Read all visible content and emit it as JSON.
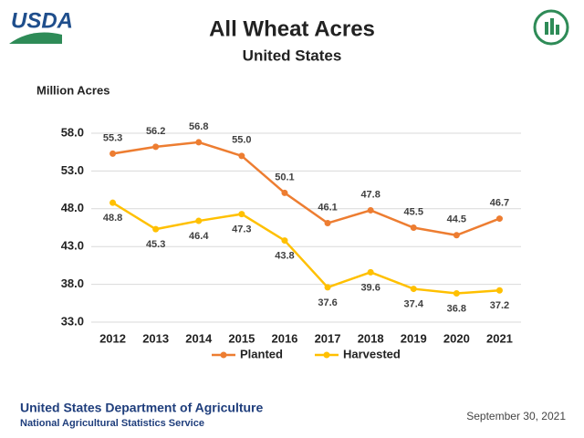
{
  "logo_text": "USDA",
  "chart_data": {
    "type": "line",
    "title": "All Wheat Acres",
    "subtitle": "United States",
    "y_label": "Million Acres",
    "categories": [
      "2012",
      "2013",
      "2014",
      "2015",
      "2016",
      "2017",
      "2018",
      "2019",
      "2020",
      "2021"
    ],
    "series": [
      {
        "name": "Planted",
        "color": "#ed7d31",
        "label_position": "above",
        "values": [
          55.3,
          56.2,
          56.8,
          55.0,
          50.1,
          46.1,
          47.8,
          45.5,
          44.5,
          46.7
        ],
        "value_labels": [
          "55.3",
          "56.2",
          "56.8",
          "55.0",
          "50.1",
          "46.1",
          "47.8",
          "45.5",
          "44.5",
          "46.7"
        ]
      },
      {
        "name": "Harvested",
        "color": "#ffc000",
        "label_position": "below",
        "values": [
          48.8,
          45.3,
          46.4,
          47.3,
          43.8,
          37.6,
          39.6,
          37.4,
          36.8,
          37.2
        ],
        "value_labels": [
          "48.8",
          "45.3",
          "46.4",
          "47.3",
          "43.8",
          "37.6",
          "39.6",
          "37.4",
          "36.8",
          "37.2"
        ]
      }
    ],
    "ylim": [
      33,
      58
    ],
    "yticks": [
      {
        "value": 33,
        "label": "33.0"
      },
      {
        "value": 38,
        "label": "38.0"
      },
      {
        "value": 43,
        "label": "43.0"
      },
      {
        "value": 48,
        "label": "48.0"
      },
      {
        "value": 53,
        "label": "53.0"
      },
      {
        "value": 58,
        "label": "58.0"
      }
    ],
    "grid": true,
    "legend": "bottom"
  },
  "footer": {
    "org": "United States Department of Agriculture",
    "service": "National Agricultural Statistics Service",
    "date": "September 30, 2021"
  }
}
